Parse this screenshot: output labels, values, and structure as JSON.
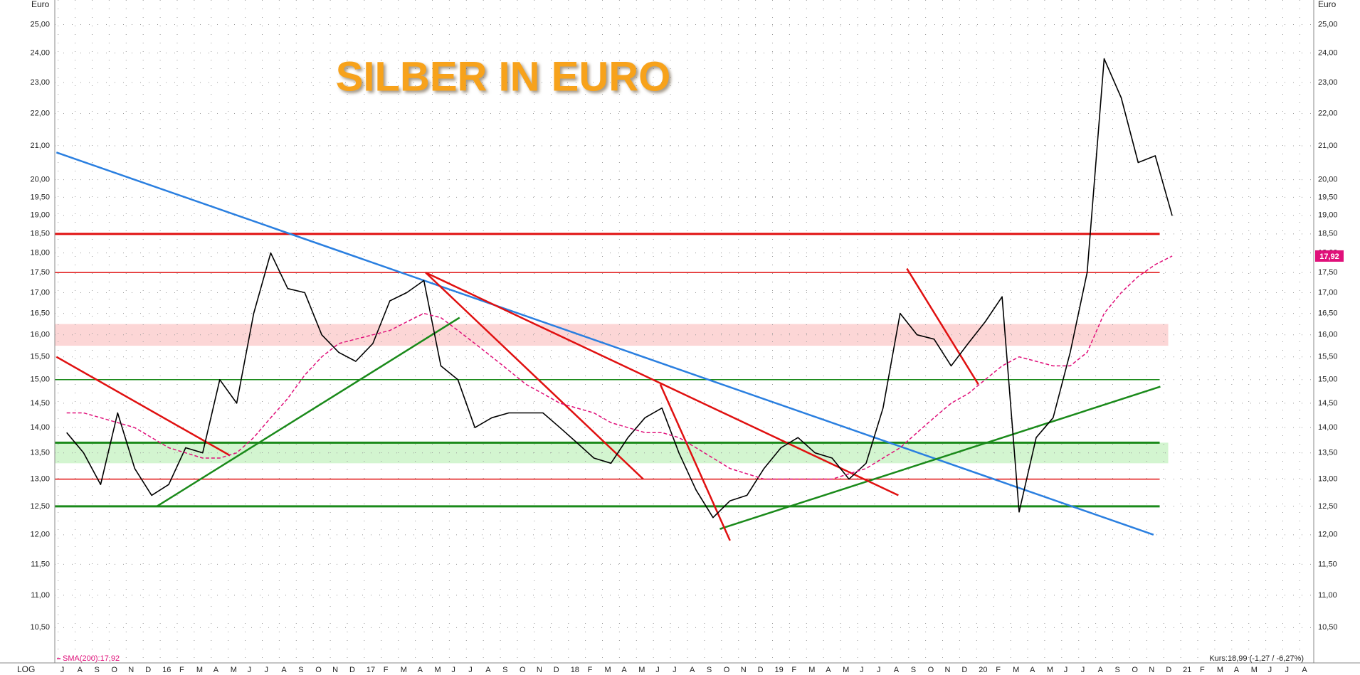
{
  "chart_data": {
    "type": "line",
    "title": "SILBER IN EURO",
    "y_unit": "Euro",
    "scale_label": "LOG",
    "log_scale": true,
    "grid": true,
    "last_price_label": "Kurs:18,99 (-1,27 / -6,27%)",
    "sma_last_label": "17,92",
    "categories": [
      "J",
      "A",
      "S",
      "O",
      "N",
      "D",
      "16",
      "F",
      "M",
      "A",
      "M",
      "J",
      "J",
      "A",
      "S",
      "O",
      "N",
      "D",
      "17",
      "F",
      "M",
      "A",
      "M",
      "J",
      "J",
      "A",
      "S",
      "O",
      "N",
      "D",
      "18",
      "F",
      "M",
      "A",
      "M",
      "J",
      "J",
      "A",
      "S",
      "O",
      "N",
      "D",
      "19",
      "F",
      "M",
      "A",
      "M",
      "J",
      "J",
      "A",
      "S",
      "O",
      "N",
      "D",
      "20",
      "F",
      "M",
      "A",
      "M",
      "J",
      "J",
      "A",
      "S",
      "O",
      "N",
      "D",
      "21",
      "F",
      "M",
      "A",
      "M",
      "J",
      "J",
      "A"
    ],
    "series": [
      {
        "color": "#000000",
        "values": [
          13.9,
          13.5,
          12.9,
          14.3,
          13.2,
          12.7,
          12.9,
          13.6,
          13.5,
          15.0,
          14.5,
          16.5,
          18.0,
          17.1,
          17.0,
          16.0,
          15.6,
          15.4,
          15.8,
          16.8,
          17.0,
          17.3,
          15.3,
          15.0,
          14.0,
          14.2,
          14.3,
          14.3,
          14.3,
          14.0,
          13.7,
          13.4,
          13.3,
          13.8,
          14.2,
          14.4,
          13.5,
          12.8,
          12.3,
          12.6,
          12.7,
          13.2,
          13.6,
          13.8,
          13.5,
          13.4,
          13.0,
          13.3,
          14.4,
          16.5,
          16.0,
          15.9,
          15.3,
          15.8,
          16.3,
          16.9,
          12.4,
          13.8,
          14.2,
          15.6,
          17.5,
          23.8,
          22.5,
          20.5,
          20.7,
          18.99,
          null,
          null,
          null,
          null,
          null,
          null,
          null,
          null
        ]
      },
      {
        "name": "SMA(200):17,92",
        "color": "#e0107a",
        "dashed": true,
        "values": [
          14.3,
          14.3,
          14.2,
          14.1,
          14.0,
          13.8,
          13.6,
          13.5,
          13.4,
          13.4,
          13.5,
          13.8,
          14.2,
          14.6,
          15.1,
          15.5,
          15.8,
          15.9,
          16.0,
          16.1,
          16.3,
          16.5,
          16.4,
          16.1,
          15.8,
          15.5,
          15.2,
          14.9,
          14.7,
          14.5,
          14.4,
          14.3,
          14.1,
          14.0,
          13.9,
          13.9,
          13.8,
          13.6,
          13.4,
          13.2,
          13.1,
          13.0,
          13.0,
          13.0,
          13.0,
          13.0,
          13.1,
          13.2,
          13.4,
          13.6,
          13.9,
          14.2,
          14.5,
          14.7,
          15.0,
          15.3,
          15.5,
          15.4,
          15.3,
          15.3,
          15.6,
          16.5,
          17.0,
          17.4,
          17.7,
          17.92,
          null,
          null,
          null,
          null,
          null,
          null,
          null,
          null
        ]
      }
    ],
    "ylim": [
      10.0,
      25.9
    ],
    "yticks": [
      {
        "value": 10.5,
        "label": "10,50"
      },
      {
        "value": 11,
        "label": "11,00"
      },
      {
        "value": 11.5,
        "label": "11,50"
      },
      {
        "value": 12,
        "label": "12,00"
      },
      {
        "value": 12.5,
        "label": "12,50"
      },
      {
        "value": 13,
        "label": "13,00"
      },
      {
        "value": 13.5,
        "label": "13,50"
      },
      {
        "value": 14,
        "label": "14,00"
      },
      {
        "value": 14.5,
        "label": "14,50"
      },
      {
        "value": 15,
        "label": "15,00"
      },
      {
        "value": 15.5,
        "label": "15,50"
      },
      {
        "value": 16,
        "label": "16,00"
      },
      {
        "value": 16.5,
        "label": "16,50"
      },
      {
        "value": 17,
        "label": "17,00"
      },
      {
        "value": 17.5,
        "label": "17,50"
      },
      {
        "value": 18,
        "label": "18,00"
      },
      {
        "value": 18.5,
        "label": "18,50"
      },
      {
        "value": 19,
        "label": "19,00"
      },
      {
        "value": 19.5,
        "label": "19,50"
      },
      {
        "value": 20,
        "label": "20,00"
      },
      {
        "value": 21,
        "label": "21,00"
      },
      {
        "value": 22,
        "label": "22,00"
      },
      {
        "value": 23,
        "label": "23,00"
      },
      {
        "value": 24,
        "label": "24,00"
      },
      {
        "value": 25,
        "label": "25,00"
      }
    ],
    "bands": [
      {
        "from": 15.75,
        "to": 16.25,
        "color": "#fcd6d6"
      },
      {
        "from": 13.3,
        "to": 13.7,
        "color": "#d3f5d0"
      }
    ],
    "levels": [
      {
        "value": 18.5,
        "color": "#e01010",
        "width": 3
      },
      {
        "value": 17.5,
        "color": "#e01010",
        "width": 1.5
      },
      {
        "value": 15.0,
        "color": "#1a8a1a",
        "width": 1.5
      },
      {
        "value": 13.7,
        "color": "#1a8a1a",
        "width": 3
      },
      {
        "value": 13.0,
        "color": "#e01010",
        "width": 1.5
      },
      {
        "value": 12.5,
        "color": "#1a8a1a",
        "width": 3
      }
    ],
    "trendlines": [
      {
        "from": [
          -0.1,
          20.8
        ],
        "to": [
          64.4,
          12.0
        ],
        "color": "#2a7fe0"
      },
      {
        "from": [
          38.9,
          12.1
        ],
        "to": [
          64.8,
          14.85
        ],
        "color": "#1a8a1a"
      },
      {
        "from": [
          5.8,
          12.5
        ],
        "to": [
          23.6,
          16.4
        ],
        "color": "#1a8a1a"
      },
      {
        "from": [
          21.6,
          17.5
        ],
        "to": [
          49.4,
          12.7
        ],
        "color": "#e01010"
      },
      {
        "from": [
          -0.1,
          15.5
        ],
        "to": [
          10.1,
          13.45
        ],
        "color": "#e01010"
      },
      {
        "from": [
          21.6,
          17.5
        ],
        "to": [
          34.4,
          13.0
        ],
        "color": "#e01010"
      },
      {
        "from": [
          49.9,
          17.6
        ],
        "to": [
          54.1,
          14.9
        ],
        "color": "#e01010"
      },
      {
        "from": [
          35.4,
          14.9
        ],
        "to": [
          39.5,
          11.9
        ],
        "color": "#e01010"
      }
    ]
  }
}
